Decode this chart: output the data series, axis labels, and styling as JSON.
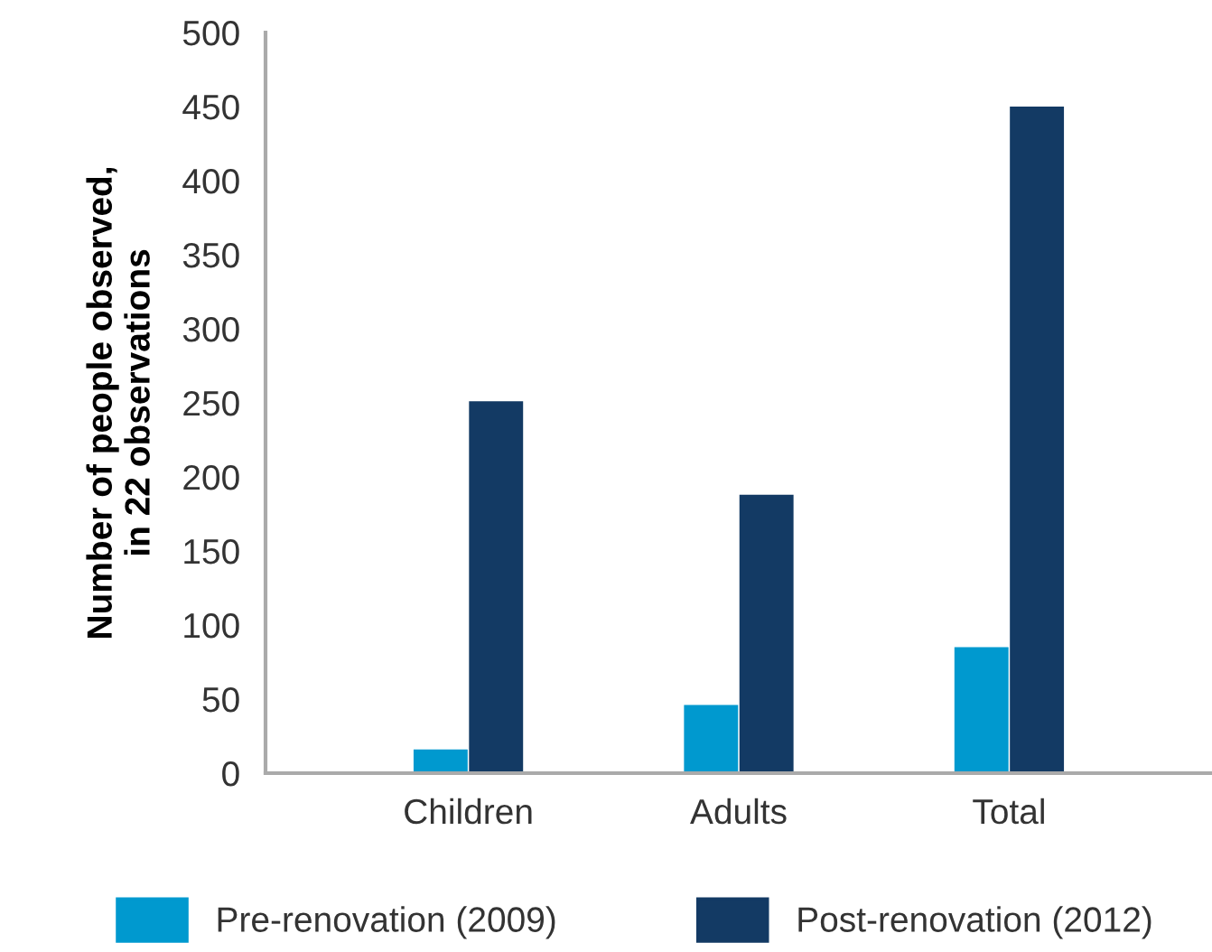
{
  "chart_data": {
    "type": "bar",
    "ylabel": "Number of people observed,\nin 22 observations",
    "categories": [
      "Children",
      "Adults",
      "Total"
    ],
    "series": [
      {
        "name": "Pre-renovation (2009)",
        "color": "#0099cf",
        "values": [
          16,
          46,
          85
        ]
      },
      {
        "name": "Post-renovation (2012)",
        "color": "#133a64",
        "values": [
          251,
          188,
          450
        ]
      }
    ],
    "ylim": [
      0,
      500
    ],
    "yticks": [
      0,
      50,
      100,
      150,
      200,
      250,
      300,
      350,
      400,
      450,
      500
    ],
    "grid": false,
    "legend": "bottom"
  }
}
